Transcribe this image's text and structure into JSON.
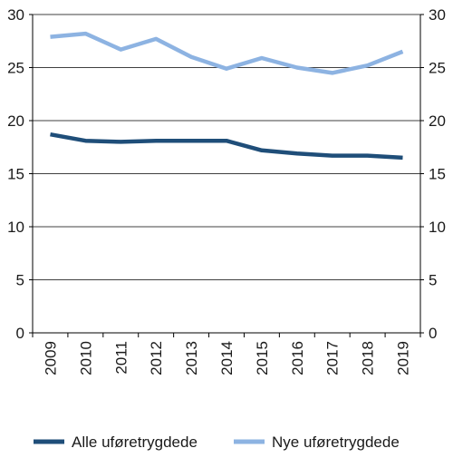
{
  "chart_data": {
    "type": "line",
    "title": "",
    "xlabel": "",
    "ylabel": "",
    "categories": [
      "2009",
      "2010",
      "2011",
      "2012",
      "2013",
      "2014",
      "2015",
      "2016",
      "2017",
      "2018",
      "2019"
    ],
    "ylim": [
      0,
      30
    ],
    "yticks": [
      "0",
      "5",
      "10",
      "15",
      "20",
      "25",
      "30"
    ],
    "secondary_axis_ticks": [
      "0",
      "5",
      "10",
      "15",
      "20",
      "25",
      "30"
    ],
    "grid": true,
    "legend_position": "bottom",
    "series": [
      {
        "name": "Alle uføretrygdede",
        "color": "#1f4e79",
        "values": [
          18.7,
          18.1,
          18.0,
          18.1,
          18.1,
          18.1,
          17.2,
          16.9,
          16.7,
          16.7,
          16.5
        ]
      },
      {
        "name": "Nye uføretrygdede",
        "color": "#8db3e2",
        "values": [
          27.9,
          28.2,
          26.7,
          27.7,
          26.0,
          24.9,
          25.9,
          25.0,
          24.5,
          25.2,
          26.5
        ]
      }
    ]
  }
}
